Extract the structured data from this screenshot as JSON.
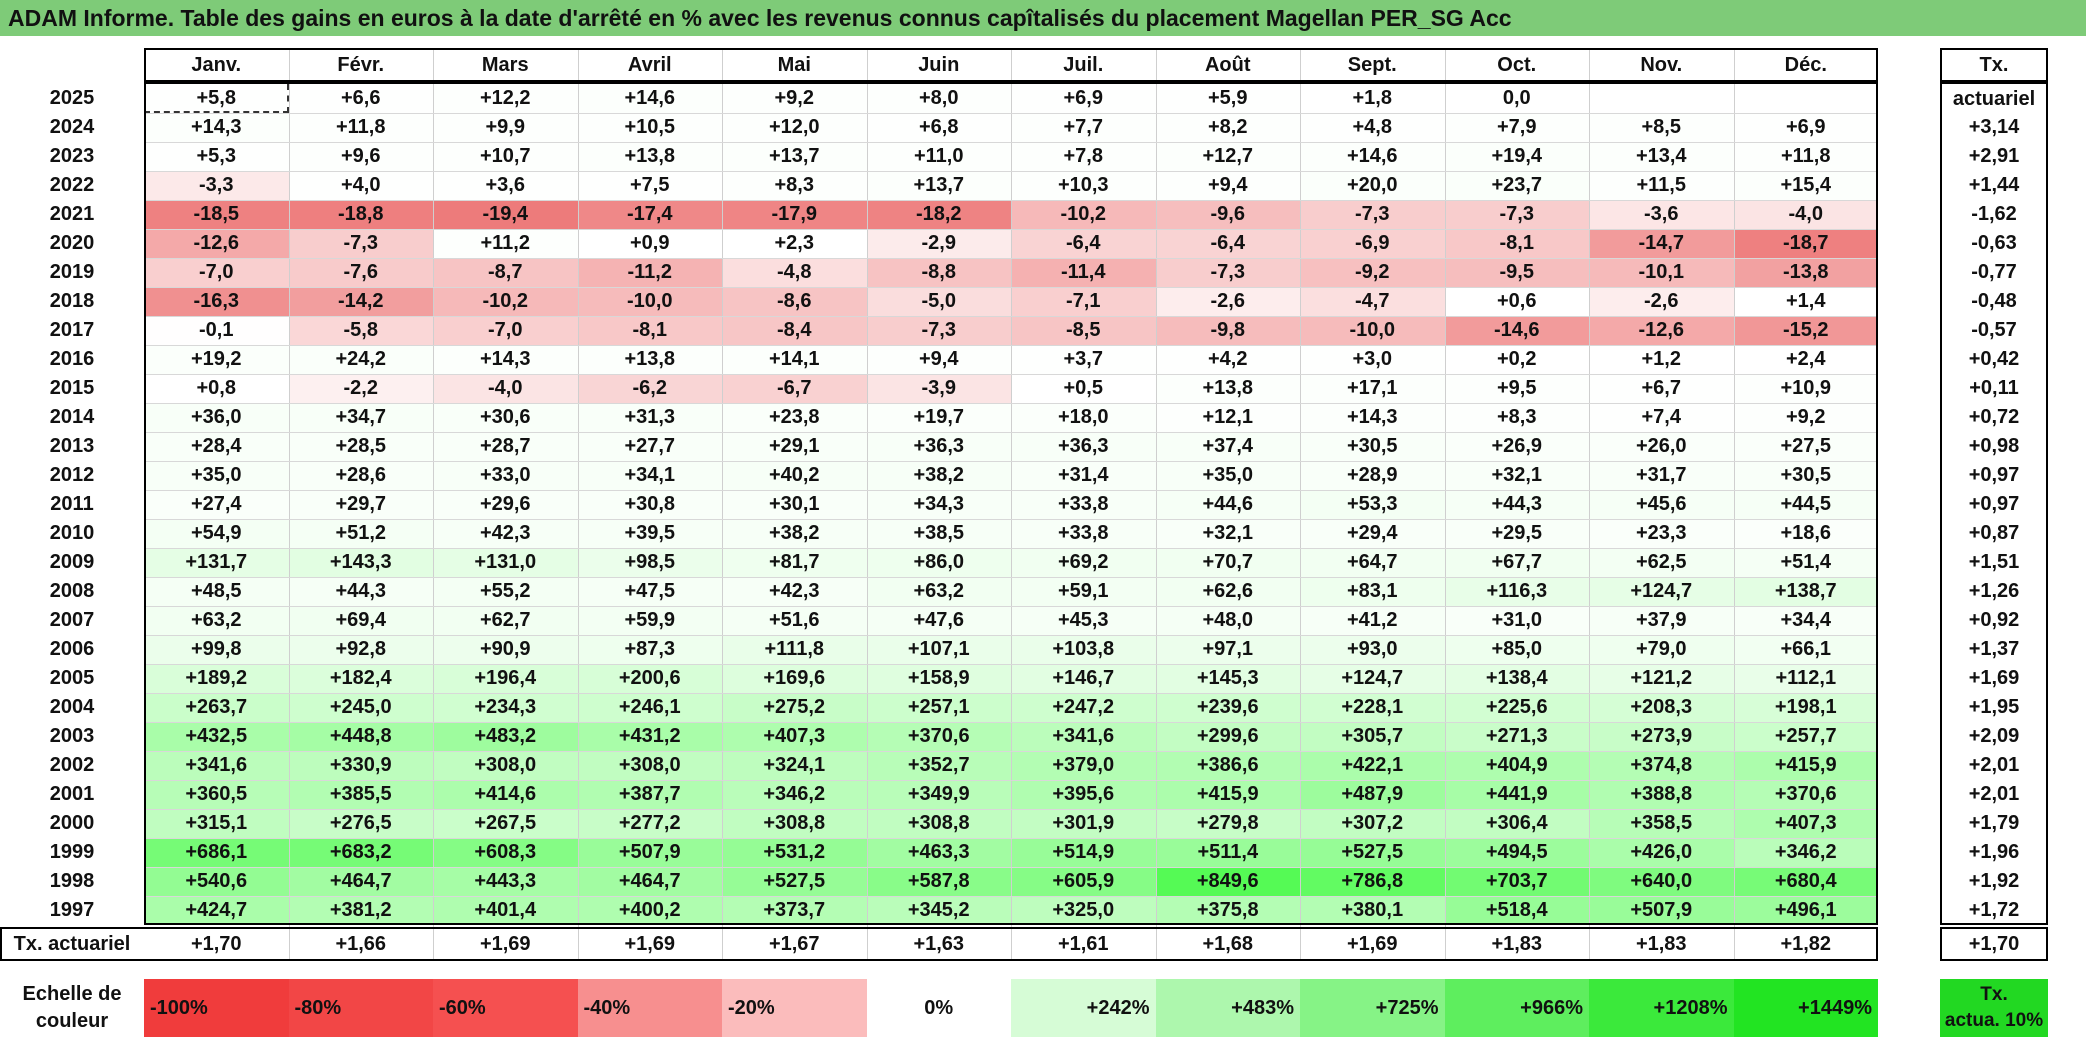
{
  "title": "ADAM Informe. Table des gains en euros à la date d'arrêté en % avec les revenus connus capîtalisés du placement Magellan PER_SG Acc",
  "months": [
    "Janv.",
    "Févr.",
    "Mars",
    "Avril",
    "Mai",
    "Juin",
    "Juil.",
    "Août",
    "Sept.",
    "Oct.",
    "Nov.",
    "Déc."
  ],
  "tx_header": "Tx. actuariel",
  "colors": {
    "title_bg": "#7ecb78",
    "neg_max": "#f04a4a",
    "pos_max": "#37e837",
    "legend_tx": "#22d822"
  },
  "rows": [
    {
      "year": "2025",
      "vals": [
        "+5,8",
        "+6,6",
        "+12,2",
        "+14,6",
        "+9,2",
        "+8,0",
        "+6,9",
        "+5,9",
        "+1,8",
        "0,0",
        "",
        ""
      ],
      "tx": ""
    },
    {
      "year": "2024",
      "vals": [
        "+14,3",
        "+11,8",
        "+9,9",
        "+10,5",
        "+12,0",
        "+6,8",
        "+7,7",
        "+8,2",
        "+4,8",
        "+7,9",
        "+8,5",
        "+6,9"
      ],
      "tx": "+3,14"
    },
    {
      "year": "2023",
      "vals": [
        "+5,3",
        "+9,6",
        "+10,7",
        "+13,8",
        "+13,7",
        "+11,0",
        "+7,8",
        "+12,7",
        "+14,6",
        "+19,4",
        "+13,4",
        "+11,8"
      ],
      "tx": "+2,91"
    },
    {
      "year": "2022",
      "vals": [
        "-3,3",
        "+4,0",
        "+3,6",
        "+7,5",
        "+8,3",
        "+13,7",
        "+10,3",
        "+9,4",
        "+20,0",
        "+23,7",
        "+11,5",
        "+15,4"
      ],
      "tx": "+1,44"
    },
    {
      "year": "2021",
      "vals": [
        "-18,5",
        "-18,8",
        "-19,4",
        "-17,4",
        "-17,9",
        "-18,2",
        "-10,2",
        "-9,6",
        "-7,3",
        "-7,3",
        "-3,6",
        "-4,0"
      ],
      "tx": "-1,62"
    },
    {
      "year": "2020",
      "vals": [
        "-12,6",
        "-7,3",
        "+11,2",
        "+0,9",
        "+2,3",
        "-2,9",
        "-6,4",
        "-6,4",
        "-6,9",
        "-8,1",
        "-14,7",
        "-18,7"
      ],
      "tx": "-0,63"
    },
    {
      "year": "2019",
      "vals": [
        "-7,0",
        "-7,6",
        "-8,7",
        "-11,2",
        "-4,8",
        "-8,8",
        "-11,4",
        "-7,3",
        "-9,2",
        "-9,5",
        "-10,1",
        "-13,8"
      ],
      "tx": "-0,77"
    },
    {
      "year": "2018",
      "vals": [
        "-16,3",
        "-14,2",
        "-10,2",
        "-10,0",
        "-8,6",
        "-5,0",
        "-7,1",
        "-2,6",
        "-4,7",
        "+0,6",
        "-2,6",
        "+1,4"
      ],
      "tx": "-0,48"
    },
    {
      "year": "2017",
      "vals": [
        "-0,1",
        "-5,8",
        "-7,0",
        "-8,1",
        "-8,4",
        "-7,3",
        "-8,5",
        "-9,8",
        "-10,0",
        "-14,6",
        "-12,6",
        "-15,2"
      ],
      "tx": "-0,57"
    },
    {
      "year": "2016",
      "vals": [
        "+19,2",
        "+24,2",
        "+14,3",
        "+13,8",
        "+14,1",
        "+9,4",
        "+3,7",
        "+4,2",
        "+3,0",
        "+0,2",
        "+1,2",
        "+2,4"
      ],
      "tx": "+0,42"
    },
    {
      "year": "2015",
      "vals": [
        "+0,8",
        "-2,2",
        "-4,0",
        "-6,2",
        "-6,7",
        "-3,9",
        "+0,5",
        "+13,8",
        "+17,1",
        "+9,5",
        "+6,7",
        "+10,9"
      ],
      "tx": "+0,11"
    },
    {
      "year": "2014",
      "vals": [
        "+36,0",
        "+34,7",
        "+30,6",
        "+31,3",
        "+23,8",
        "+19,7",
        "+18,0",
        "+12,1",
        "+14,3",
        "+8,3",
        "+7,4",
        "+9,2"
      ],
      "tx": "+0,72"
    },
    {
      "year": "2013",
      "vals": [
        "+28,4",
        "+28,5",
        "+28,7",
        "+27,7",
        "+29,1",
        "+36,3",
        "+36,3",
        "+37,4",
        "+30,5",
        "+26,9",
        "+26,0",
        "+27,5"
      ],
      "tx": "+0,98"
    },
    {
      "year": "2012",
      "vals": [
        "+35,0",
        "+28,6",
        "+33,0",
        "+34,1",
        "+40,2",
        "+38,2",
        "+31,4",
        "+35,0",
        "+28,9",
        "+32,1",
        "+31,7",
        "+30,5"
      ],
      "tx": "+0,97"
    },
    {
      "year": "2011",
      "vals": [
        "+27,4",
        "+29,7",
        "+29,6",
        "+30,8",
        "+30,1",
        "+34,3",
        "+33,8",
        "+44,6",
        "+53,3",
        "+44,3",
        "+45,6",
        "+44,5"
      ],
      "tx": "+0,97"
    },
    {
      "year": "2010",
      "vals": [
        "+54,9",
        "+51,2",
        "+42,3",
        "+39,5",
        "+38,2",
        "+38,5",
        "+33,8",
        "+32,1",
        "+29,4",
        "+29,5",
        "+23,3",
        "+18,6"
      ],
      "tx": "+0,87"
    },
    {
      "year": "2009",
      "vals": [
        "+131,7",
        "+143,3",
        "+131,0",
        "+98,5",
        "+81,7",
        "+86,0",
        "+69,2",
        "+70,7",
        "+64,7",
        "+67,7",
        "+62,5",
        "+51,4"
      ],
      "tx": "+1,51"
    },
    {
      "year": "2008",
      "vals": [
        "+48,5",
        "+44,3",
        "+55,2",
        "+47,5",
        "+42,3",
        "+63,2",
        "+59,1",
        "+62,6",
        "+83,1",
        "+116,3",
        "+124,7",
        "+138,7"
      ],
      "tx": "+1,26"
    },
    {
      "year": "2007",
      "vals": [
        "+63,2",
        "+69,4",
        "+62,7",
        "+59,9",
        "+51,6",
        "+47,6",
        "+45,3",
        "+48,0",
        "+41,2",
        "+31,0",
        "+37,9",
        "+34,4"
      ],
      "tx": "+0,92"
    },
    {
      "year": "2006",
      "vals": [
        "+99,8",
        "+92,8",
        "+90,9",
        "+87,3",
        "+111,8",
        "+107,1",
        "+103,8",
        "+97,1",
        "+93,0",
        "+85,0",
        "+79,0",
        "+66,1"
      ],
      "tx": "+1,37"
    },
    {
      "year": "2005",
      "vals": [
        "+189,2",
        "+182,4",
        "+196,4",
        "+200,6",
        "+169,6",
        "+158,9",
        "+146,7",
        "+145,3",
        "+124,7",
        "+138,4",
        "+121,2",
        "+112,1"
      ],
      "tx": "+1,69"
    },
    {
      "year": "2004",
      "vals": [
        "+263,7",
        "+245,0",
        "+234,3",
        "+246,1",
        "+275,2",
        "+257,1",
        "+247,2",
        "+239,6",
        "+228,1",
        "+225,6",
        "+208,3",
        "+198,1"
      ],
      "tx": "+1,95"
    },
    {
      "year": "2003",
      "vals": [
        "+432,5",
        "+448,8",
        "+483,2",
        "+431,2",
        "+407,3",
        "+370,6",
        "+341,6",
        "+299,6",
        "+305,7",
        "+271,3",
        "+273,9",
        "+257,7"
      ],
      "tx": "+2,09"
    },
    {
      "year": "2002",
      "vals": [
        "+341,6",
        "+330,9",
        "+308,0",
        "+308,0",
        "+324,1",
        "+352,7",
        "+379,0",
        "+386,6",
        "+422,1",
        "+404,9",
        "+374,8",
        "+415,9"
      ],
      "tx": "+2,01"
    },
    {
      "year": "2001",
      "vals": [
        "+360,5",
        "+385,5",
        "+414,6",
        "+387,7",
        "+346,2",
        "+349,9",
        "+395,6",
        "+415,9",
        "+487,9",
        "+441,9",
        "+388,8",
        "+370,6"
      ],
      "tx": "+2,01"
    },
    {
      "year": "2000",
      "vals": [
        "+315,1",
        "+276,5",
        "+267,5",
        "+277,2",
        "+308,8",
        "+308,8",
        "+301,9",
        "+279,8",
        "+307,2",
        "+306,4",
        "+358,5",
        "+407,3"
      ],
      "tx": "+1,79"
    },
    {
      "year": "1999",
      "vals": [
        "+686,1",
        "+683,2",
        "+608,3",
        "+507,9",
        "+531,2",
        "+463,3",
        "+514,9",
        "+511,4",
        "+527,5",
        "+494,5",
        "+426,0",
        "+346,2"
      ],
      "tx": "+1,96"
    },
    {
      "year": "1998",
      "vals": [
        "+540,6",
        "+464,7",
        "+443,3",
        "+464,7",
        "+527,5",
        "+587,8",
        "+605,9",
        "+849,6",
        "+786,8",
        "+703,7",
        "+640,0",
        "+680,4"
      ],
      "tx": "+1,92"
    },
    {
      "year": "1997",
      "vals": [
        "+424,7",
        "+381,2",
        "+401,4",
        "+400,2",
        "+373,7",
        "+345,2",
        "+325,0",
        "+375,8",
        "+380,1",
        "+518,4",
        "+507,9",
        "+496,1"
      ],
      "tx": "+1,72"
    }
  ],
  "tx_row": {
    "label": "Tx. actuariel",
    "vals": [
      "+1,70",
      "+1,66",
      "+1,69",
      "+1,69",
      "+1,67",
      "+1,63",
      "+1,61",
      "+1,68",
      "+1,69",
      "+1,83",
      "+1,83",
      "+1,82"
    ],
    "total": "+1,70"
  },
  "scale": {
    "label_line1": "Echelle de",
    "label_line2": "couleur",
    "items": [
      {
        "text": "-100%",
        "color": "#f03c3c",
        "align": "left"
      },
      {
        "text": "-80%",
        "color": "#f24646",
        "align": "left"
      },
      {
        "text": "-60%",
        "color": "#f55050",
        "align": "left"
      },
      {
        "text": "-40%",
        "color": "#f78f8f",
        "align": "left"
      },
      {
        "text": "-20%",
        "color": "#fbbcbc",
        "align": "left"
      },
      {
        "text": "0%",
        "color": "#ffffff",
        "align": "center"
      },
      {
        "text": "+242%",
        "color": "#d6fcd6",
        "align": "right"
      },
      {
        "text": "+483%",
        "color": "#adf7ad",
        "align": "right"
      },
      {
        "text": "+725%",
        "color": "#86f386",
        "align": "right"
      },
      {
        "text": "+966%",
        "color": "#5eee5e",
        "align": "right"
      },
      {
        "text": "+1208%",
        "color": "#3be93b",
        "align": "right"
      },
      {
        "text": "+1449%",
        "color": "#22e422",
        "align": "right"
      }
    ],
    "tx_line1": "Tx.",
    "tx_line2": "actua. 10%"
  }
}
